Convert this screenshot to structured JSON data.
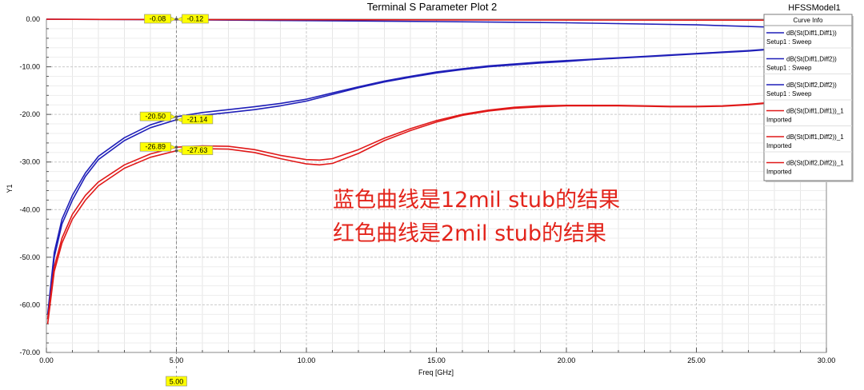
{
  "chart_data": {
    "type": "line",
    "title": "Terminal S Parameter Plot 2",
    "model_label": "HFSSModel1",
    "xlabel": "Freq [GHz]",
    "ylabel": "Y1",
    "xlim": [
      0,
      30
    ],
    "ylim": [
      -70,
      0
    ],
    "x_ticks": [
      "0.00",
      "5.00",
      "10.00",
      "15.00",
      "20.00",
      "25.00",
      "30.00"
    ],
    "y_ticks": [
      "0.00",
      "-10.00",
      "-20.00",
      "-30.00",
      "-40.00",
      "-50.00",
      "-60.00",
      "-70.00"
    ],
    "grid": true,
    "legend": {
      "title": "Curve Info",
      "placement": "top-right",
      "entries": [
        {
          "line1": "dB(St(Diff1,Diff1))",
          "line2": "Setup1 : Sweep",
          "color": "#1f1fb8"
        },
        {
          "line1": "dB(St(Diff1,Diff2))",
          "line2": "Setup1 : Sweep",
          "color": "#1f1fb8"
        },
        {
          "line1": "dB(St(Diff2,Diff2))",
          "line2": "Setup1 : Sweep",
          "color": "#1f1fb8"
        },
        {
          "line1": "dB(St(Diff1,Diff1))_1",
          "line2": "Imported",
          "color": "#e01818"
        },
        {
          "line1": "dB(St(Diff1,Diff2))_1",
          "line2": "Imported",
          "color": "#e01818"
        },
        {
          "line1": "dB(St(Diff2,Diff2))_1",
          "line2": "Imported",
          "color": "#e01818"
        }
      ]
    },
    "series": [
      {
        "color": "#1f1fb8",
        "points": [
          [
            0.05,
            -63
          ],
          [
            0.3,
            -50
          ],
          [
            0.6,
            -43
          ],
          [
            1,
            -38
          ],
          [
            1.5,
            -33
          ],
          [
            2,
            -29.5
          ],
          [
            3,
            -25.5
          ],
          [
            4,
            -22.8
          ],
          [
            5,
            -21.14
          ],
          [
            6,
            -20.2
          ],
          [
            7,
            -19.6
          ],
          [
            8,
            -19
          ],
          [
            9,
            -18.2
          ],
          [
            10,
            -17.2
          ],
          [
            11,
            -15.8
          ],
          [
            12,
            -14.4
          ],
          [
            13,
            -13.2
          ],
          [
            14,
            -12.2
          ],
          [
            15,
            -11.3
          ],
          [
            16,
            -10.6
          ],
          [
            17,
            -10
          ],
          [
            18,
            -9.6
          ],
          [
            19,
            -9.2
          ],
          [
            20,
            -8.9
          ],
          [
            21,
            -8.5
          ],
          [
            22,
            -8.2
          ],
          [
            23,
            -7.9
          ],
          [
            24,
            -7.6
          ],
          [
            25,
            -7.3
          ],
          [
            26,
            -7
          ],
          [
            27,
            -6.7
          ],
          [
            28,
            -6.3
          ],
          [
            29,
            -6
          ],
          [
            30,
            -5.6
          ]
        ]
      },
      {
        "color": "#1f1fb8",
        "points": [
          [
            0.05,
            -62
          ],
          [
            0.3,
            -49
          ],
          [
            0.6,
            -42
          ],
          [
            1,
            -37
          ],
          [
            1.5,
            -32.3
          ],
          [
            2,
            -28.8
          ],
          [
            3,
            -24.9
          ],
          [
            4,
            -22.2
          ],
          [
            5,
            -20.5
          ],
          [
            6,
            -19.6
          ],
          [
            7,
            -19
          ],
          [
            8,
            -18.4
          ],
          [
            9,
            -17.7
          ],
          [
            10,
            -16.8
          ],
          [
            11,
            -15.5
          ],
          [
            12,
            -14.2
          ],
          [
            13,
            -13
          ],
          [
            14,
            -12
          ],
          [
            15,
            -11.1
          ],
          [
            16,
            -10.4
          ],
          [
            17,
            -9.8
          ],
          [
            18,
            -9.4
          ],
          [
            19,
            -9
          ],
          [
            20,
            -8.7
          ],
          [
            21,
            -8.4
          ],
          [
            22,
            -8.1
          ],
          [
            23,
            -7.8
          ],
          [
            24,
            -7.5
          ],
          [
            25,
            -7.2
          ],
          [
            26,
            -6.9
          ],
          [
            27,
            -6.6
          ],
          [
            28,
            -6.2
          ],
          [
            29,
            -5.9
          ],
          [
            30,
            -5.5
          ]
        ]
      },
      {
        "color": "#1f1fb8",
        "points": [
          [
            0,
            -0.01
          ],
          [
            5,
            -0.12
          ],
          [
            10,
            -0.3
          ],
          [
            15,
            -0.5
          ],
          [
            20,
            -0.75
          ],
          [
            25,
            -1.2
          ],
          [
            28,
            -1.7
          ],
          [
            30,
            -2.1
          ]
        ]
      },
      {
        "color": "#e01818",
        "points": [
          [
            0.05,
            -64
          ],
          [
            0.3,
            -53
          ],
          [
            0.6,
            -47
          ],
          [
            1,
            -42
          ],
          [
            1.5,
            -38
          ],
          [
            2,
            -35
          ],
          [
            3,
            -31.3
          ],
          [
            4,
            -29
          ],
          [
            5,
            -27.63
          ],
          [
            6,
            -27.2
          ],
          [
            7,
            -27.3
          ],
          [
            8,
            -28
          ],
          [
            9,
            -29.3
          ],
          [
            10,
            -30.4
          ],
          [
            10.5,
            -30.6
          ],
          [
            11,
            -30.3
          ],
          [
            12,
            -28.2
          ],
          [
            13,
            -25.5
          ],
          [
            14,
            -23.4
          ],
          [
            15,
            -21.6
          ],
          [
            16,
            -20.2
          ],
          [
            17,
            -19.3
          ],
          [
            18,
            -18.7
          ],
          [
            19,
            -18.4
          ],
          [
            20,
            -18.2
          ],
          [
            21,
            -18.2
          ],
          [
            22,
            -18.2
          ],
          [
            23,
            -18.3
          ],
          [
            24,
            -18.4
          ],
          [
            25,
            -18.4
          ],
          [
            26,
            -18.3
          ],
          [
            27,
            -18
          ],
          [
            28,
            -17.5
          ],
          [
            29,
            -17
          ],
          [
            30,
            -16.5
          ]
        ]
      },
      {
        "color": "#e01818",
        "points": [
          [
            0.05,
            -63
          ],
          [
            0.3,
            -52
          ],
          [
            0.6,
            -46
          ],
          [
            1,
            -41
          ],
          [
            1.5,
            -37
          ],
          [
            2,
            -34.2
          ],
          [
            3,
            -30.6
          ],
          [
            4,
            -28.3
          ],
          [
            5,
            -26.89
          ],
          [
            6,
            -26.6
          ],
          [
            7,
            -26.7
          ],
          [
            8,
            -27.4
          ],
          [
            9,
            -28.6
          ],
          [
            10,
            -29.5
          ],
          [
            10.5,
            -29.6
          ],
          [
            11,
            -29.3
          ],
          [
            12,
            -27.4
          ],
          [
            13,
            -25
          ],
          [
            14,
            -23
          ],
          [
            15,
            -21.3
          ],
          [
            16,
            -20
          ],
          [
            17,
            -19.1
          ],
          [
            18,
            -18.5
          ],
          [
            19,
            -18.2
          ],
          [
            20,
            -18.1
          ],
          [
            21,
            -18.1
          ],
          [
            22,
            -18.1
          ],
          [
            23,
            -18.2
          ],
          [
            24,
            -18.3
          ],
          [
            25,
            -18.3
          ],
          [
            26,
            -18.2
          ],
          [
            27,
            -17.9
          ],
          [
            28,
            -17.4
          ],
          [
            29,
            -16.9
          ],
          [
            30,
            -16.4
          ]
        ]
      },
      {
        "color": "#e01818",
        "points": [
          [
            0,
            -0.01
          ],
          [
            5,
            -0.08
          ],
          [
            10,
            -0.12
          ],
          [
            15,
            -0.15
          ],
          [
            20,
            -0.18
          ],
          [
            25,
            -0.2
          ],
          [
            30,
            -0.22
          ]
        ]
      }
    ],
    "marker": {
      "x": 5.0,
      "x_label": "5.00",
      "labels": [
        {
          "text": "-0.08",
          "y": 0,
          "side": "left"
        },
        {
          "text": "-0.12",
          "y": 0,
          "side": "right"
        },
        {
          "text": "-20.50",
          "y": -20.5,
          "side": "left"
        },
        {
          "text": "-21.14",
          "y": -21.14,
          "side": "right"
        },
        {
          "text": "-26.89",
          "y": -26.89,
          "side": "left"
        },
        {
          "text": "-27.63",
          "y": -27.63,
          "side": "right"
        }
      ]
    },
    "annotations": [
      "蓝色曲线是12mil stub的结果",
      "红色曲线是2mil stub的结果"
    ]
  }
}
